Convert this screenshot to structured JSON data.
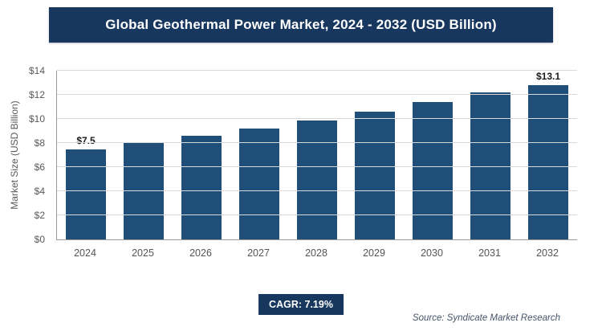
{
  "header": {
    "title": "Global Geothermal Power Market, 2024 - 2032 (USD Billion)"
  },
  "footer": {
    "cagr_label": "CAGR: 7.19%",
    "source": "Source: Syndicate Market Research"
  },
  "colors": {
    "header_bg": "#17375E",
    "bar": "#1F4E79",
    "badge_bg": "#17375E",
    "gridline": "#d9d9d9"
  },
  "chart_data": {
    "type": "bar",
    "title": "Global Geothermal Power Market, 2024 - 2032 (USD Billion)",
    "categories": [
      "2024",
      "2025",
      "2026",
      "2027",
      "2028",
      "2029",
      "2030",
      "2031",
      "2032"
    ],
    "values": [
      7.5,
      8.0,
      8.6,
      9.2,
      9.9,
      10.6,
      11.4,
      12.2,
      13.1
    ],
    "data_labels": [
      "$7.5",
      "",
      "",
      "",
      "",
      "",
      "",
      "",
      "$13.1"
    ],
    "xlabel": "",
    "ylabel": "Market Size (USD Billion)",
    "ylim": [
      0,
      14
    ],
    "ytick_step": 2,
    "ytick_prefix": "$",
    "grid": true,
    "legend": false,
    "cagr": "7.19%"
  }
}
